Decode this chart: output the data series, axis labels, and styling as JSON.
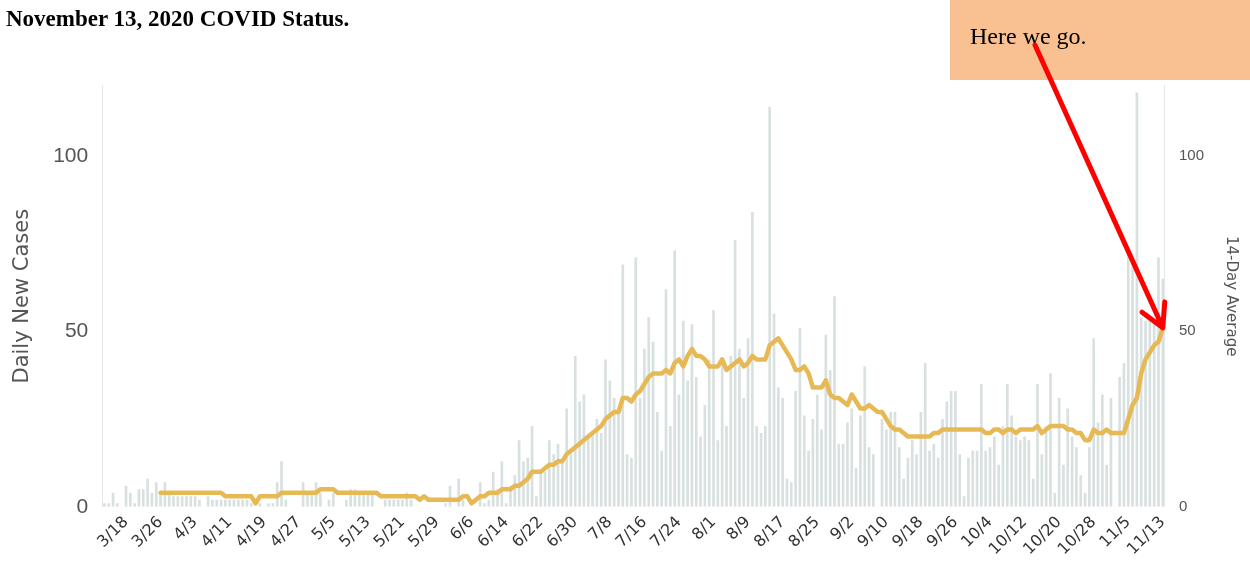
{
  "chart_data": {
    "type": "bar",
    "title": "November 13, 2020 COVID Status.",
    "ylabel": "Daily New Cases",
    "y2label": "14-Day Average",
    "categories": [
      null,
      null,
      null,
      null,
      null,
      "3/18",
      null,
      null,
      null,
      null,
      null,
      null,
      null,
      "3/26",
      null,
      null,
      null,
      null,
      null,
      null,
      null,
      "4/3",
      null,
      null,
      null,
      null,
      null,
      null,
      null,
      "4/11",
      null,
      null,
      null,
      null,
      null,
      null,
      null,
      "4/19",
      null,
      null,
      null,
      null,
      null,
      null,
      null,
      "4/27",
      null,
      null,
      null,
      null,
      null,
      null,
      null,
      "5/5",
      null,
      null,
      null,
      null,
      null,
      null,
      null,
      "5/13",
      null,
      null,
      null,
      null,
      null,
      null,
      null,
      "5/21",
      null,
      null,
      null,
      null,
      null,
      null,
      null,
      "5/29",
      null,
      null,
      null,
      null,
      null,
      null,
      null,
      "6/6",
      null,
      null,
      null,
      null,
      null,
      null,
      null,
      "6/14",
      null,
      null,
      null,
      null,
      null,
      null,
      null,
      "6/22",
      null,
      null,
      null,
      null,
      null,
      null,
      null,
      "6/30",
      null,
      null,
      null,
      null,
      null,
      null,
      null,
      "7/8",
      null,
      null,
      null,
      null,
      null,
      null,
      null,
      "7/16",
      null,
      null,
      null,
      null,
      null,
      null,
      null,
      "7/24",
      null,
      null,
      null,
      null,
      null,
      null,
      null,
      "8/1",
      null,
      null,
      null,
      null,
      null,
      null,
      null,
      "8/9",
      null,
      null,
      null,
      null,
      null,
      null,
      null,
      "8/17",
      null,
      null,
      null,
      null,
      null,
      null,
      null,
      "8/25",
      null,
      null,
      null,
      null,
      null,
      null,
      null,
      "9/2",
      null,
      null,
      null,
      null,
      null,
      null,
      null,
      "9/10",
      null,
      null,
      null,
      null,
      null,
      null,
      null,
      "9/18",
      null,
      null,
      null,
      null,
      null,
      null,
      null,
      "9/26",
      null,
      null,
      null,
      null,
      null,
      null,
      null,
      "10/4",
      null,
      null,
      null,
      null,
      null,
      null,
      null,
      "10/12",
      null,
      null,
      null,
      null,
      null,
      null,
      null,
      "10/20",
      null,
      null,
      null,
      null,
      null,
      null,
      null,
      "10/28",
      null,
      null,
      null,
      null,
      null,
      null,
      null,
      "11/5",
      null,
      null,
      null,
      null,
      null,
      null,
      null,
      "11/13"
    ],
    "series": [
      {
        "color": "#d9e0e0",
        "values": [
          1,
          1,
          4,
          1,
          0,
          6,
          4,
          1,
          5,
          5,
          8,
          4,
          7,
          4,
          7,
          4,
          3,
          3,
          3,
          3,
          3,
          3,
          2,
          0,
          3,
          2,
          2,
          2,
          2,
          2,
          2,
          2,
          2,
          2,
          1,
          null,
          1,
          0,
          1,
          1,
          7,
          13,
          2,
          0,
          0,
          0,
          7,
          4,
          4,
          7,
          4,
          0,
          2,
          4,
          0,
          0,
          2,
          5,
          5,
          4,
          4,
          4,
          4,
          0,
          0,
          2,
          2,
          2,
          2,
          2,
          4,
          2,
          0,
          0,
          0,
          0,
          0,
          0,
          0,
          1,
          6,
          0,
          8,
          2,
          null,
          null,
          null,
          7,
          1,
          2,
          10,
          5,
          13,
          1,
          6,
          9,
          19,
          13,
          14,
          23,
          3,
          10,
          10,
          19,
          15,
          18,
          13,
          28,
          15,
          43,
          30,
          32,
          20,
          21,
          25,
          21,
          42,
          36,
          31,
          27,
          69,
          15,
          14,
          71,
          31,
          45,
          54,
          47,
          27,
          16,
          62,
          23,
          73,
          32,
          53,
          36,
          52,
          37,
          20,
          29,
          42,
          56,
          19,
          41,
          23,
          43,
          76,
          45,
          31,
          48,
          84,
          23,
          21,
          23,
          114,
          55,
          34,
          31,
          8,
          7,
          33,
          51,
          26,
          16,
          25,
          32,
          22,
          49,
          39,
          60,
          18,
          18,
          24,
          28,
          11,
          26,
          40,
          17,
          15,
          0,
          25,
          22,
          27,
          27,
          17,
          8,
          14,
          19,
          15,
          27,
          41,
          16,
          18,
          14,
          25,
          30,
          33,
          33,
          15,
          3,
          14,
          16,
          16,
          35,
          16,
          17,
          20,
          12,
          23,
          35,
          26,
          20,
          19,
          20,
          19,
          8,
          35,
          15,
          23,
          38,
          4,
          31,
          12,
          28,
          20,
          17,
          9,
          4,
          17,
          48,
          24,
          32,
          12,
          31,
          0,
          37,
          41,
          72,
          70,
          118,
          54,
          53,
          54,
          52,
          71,
          65
        ]
      },
      {
        "type": "line",
        "color": "#e6b955",
        "axis": "y2",
        "values": [
          null,
          null,
          null,
          null,
          null,
          null,
          null,
          null,
          null,
          null,
          null,
          null,
          null,
          4,
          4,
          4,
          4,
          4,
          4,
          4,
          4,
          4,
          4,
          4,
          4,
          4,
          4,
          4,
          3,
          3,
          3,
          3,
          3,
          3,
          3,
          1,
          3,
          3,
          3,
          3,
          3,
          4,
          4,
          4,
          4,
          4,
          4,
          4,
          4,
          4,
          5,
          5,
          5,
          5,
          4,
          4,
          4,
          4,
          4,
          4,
          4,
          4,
          4,
          4,
          3,
          3,
          3,
          3,
          3,
          3,
          3,
          3,
          3,
          2,
          3,
          2,
          2,
          2,
          2,
          2,
          2,
          2,
          2,
          3,
          3,
          1,
          2,
          3,
          3,
          4,
          4,
          4,
          5,
          5,
          5,
          6,
          6,
          7,
          8,
          10,
          10,
          10,
          11,
          12,
          12,
          13,
          13,
          15,
          16,
          17,
          18,
          19,
          20,
          21,
          22,
          23,
          25,
          26,
          27,
          27,
          31,
          31,
          30,
          32,
          33,
          35,
          37,
          38,
          38,
          38,
          39,
          38,
          41,
          42,
          40,
          43,
          45,
          43,
          43,
          42,
          40,
          40,
          40,
          42,
          39,
          40,
          41,
          42,
          40,
          41,
          43,
          42,
          42,
          42,
          46,
          47,
          48,
          46,
          44,
          42,
          39,
          39,
          40,
          38,
          34,
          34,
          34,
          36,
          32,
          31,
          31,
          30,
          29,
          32,
          30,
          28,
          28,
          29,
          28,
          27,
          27,
          25,
          23,
          22,
          22,
          21,
          20,
          20,
          20,
          20,
          20,
          20,
          21,
          21,
          22,
          22,
          22,
          22,
          22,
          22,
          22,
          22,
          22,
          22,
          21,
          21,
          22,
          22,
          21,
          22,
          22,
          21,
          22,
          22,
          22,
          22,
          23,
          21,
          22,
          23,
          23,
          23,
          23,
          22,
          22,
          21,
          21,
          19,
          19,
          22,
          21,
          21,
          22,
          21,
          21,
          21,
          21,
          25,
          29,
          31,
          38,
          42,
          44,
          46,
          47,
          51
        ]
      }
    ],
    "ylim": [
      0,
      120
    ],
    "yticks": [
      0,
      50,
      100
    ],
    "y2lim": [
      0,
      120
    ],
    "y2ticks": [
      0,
      50,
      100
    ],
    "annotations": [
      {
        "text": "Here we go.",
        "x": "11/13",
        "y": 51
      }
    ]
  }
}
